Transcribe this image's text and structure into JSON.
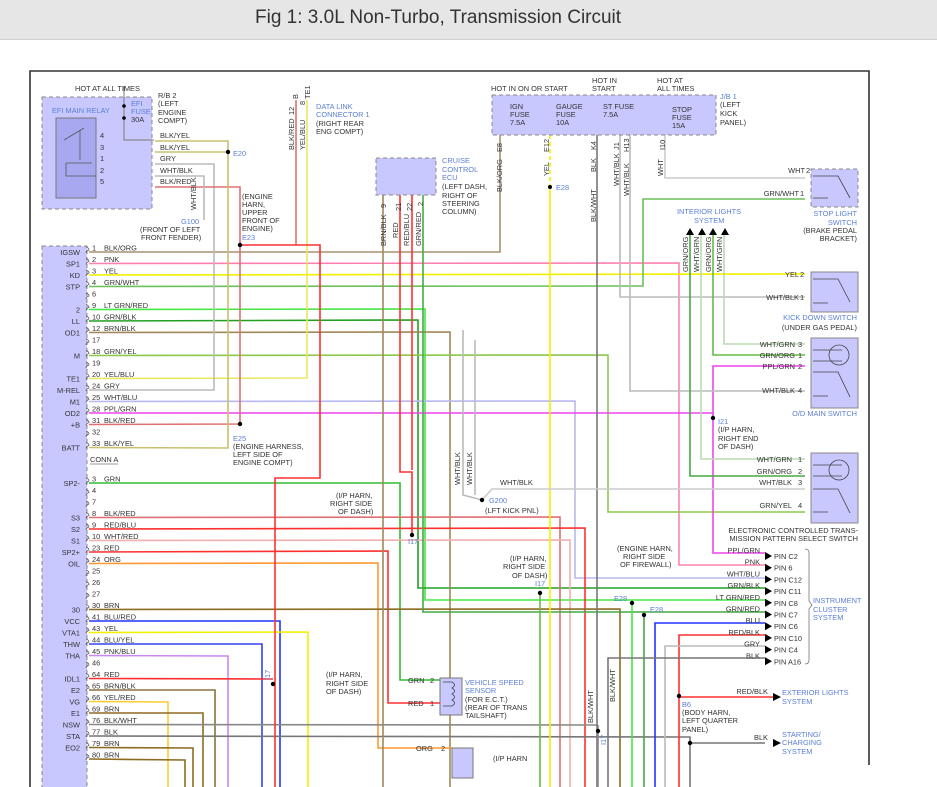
{
  "title": "Fig 1: 3.0L Non-Turbo, Transmission Circuit",
  "colors": {
    "component_fill": "#c8c8ff",
    "label_blue": "#5b7fd6",
    "frame": "#333333"
  },
  "efi_relay": {
    "hot": "HOT AT ALL TIMES",
    "name": "EFI MAIN RELAY",
    "fuse": [
      "EFI",
      "FUSE",
      "30A"
    ],
    "location": [
      "R/B 2",
      "(LEFT",
      "ENGINE",
      "COMPT)"
    ],
    "pins": [
      "4",
      "3",
      "1",
      "2",
      "5"
    ],
    "wires": [
      "BLK/YEL",
      "BLK/YEL",
      "GRY",
      "WHT/BLK",
      "BLK/RED"
    ],
    "splice_e20": "E20",
    "ground_wire": "WHT/BLK",
    "ground": "G100",
    "ground_loc": [
      "(FRONT OF LEFT",
      "FRONT FENDER)"
    ],
    "splice_e23_loc": [
      "(ENGINE",
      "HARN,",
      "UPPER",
      "FRONT OF",
      "ENGINE)"
    ],
    "splice_e23": "E23"
  },
  "data_link": {
    "pins": [
      "12",
      "8"
    ],
    "terms": [
      "B",
      "TE1"
    ],
    "wires": [
      "BLK/RED",
      "YEL/BLU"
    ],
    "name": "DATA LINK",
    "name2": "CONNECTOR 1",
    "loc": [
      "(RIGHT REAR",
      "ENG COMPT)"
    ]
  },
  "cruise": {
    "name": [
      "CRUISE",
      "CONTROL",
      "ECU"
    ],
    "loc": [
      "(LEFT DASH,",
      "RIGHT OF",
      "STEERING",
      "COLUMN)"
    ],
    "pins": [
      "9",
      "21",
      "22",
      "2"
    ],
    "wires": [
      "BRN/BLK",
      "RED",
      "RED/BLU",
      "GRN/RED"
    ]
  },
  "jb1": {
    "hot": [
      "HOT IN ON OR START",
      "HOT IN",
      "START",
      "HOT AT",
      "ALL TIMES"
    ],
    "fuses": [
      [
        "IGN",
        "FUSE",
        "7.5A"
      ],
      [
        "GAUGE",
        "FUSE",
        "10A"
      ],
      [
        "ST FUSE",
        "7.5A"
      ],
      [
        "STOP",
        "FUSE",
        "15A"
      ]
    ],
    "location": [
      "J/B 1",
      "(LEFT",
      "KICK",
      "PANEL)"
    ],
    "pins": [
      "E8",
      "E12",
      "K4",
      "J1",
      "H13",
      "I10"
    ],
    "wires": [
      "BLK/ORG",
      "YEL",
      "BLK",
      "WHT/BLK",
      "WHT/BLK",
      "WHT",
      "BLK/WHT"
    ],
    "splice_e28": "E28"
  },
  "ecm": {
    "conn_a_label": "CONN A",
    "conn_a": [
      {
        "pin": "1",
        "term": "IGSW",
        "wire": "BLK/ORG",
        "color": "#a89070"
      },
      {
        "pin": "2",
        "term": "SP1",
        "wire": "PNK",
        "color": "#ff80b0"
      },
      {
        "pin": "3",
        "term": "KD",
        "wire": "YEL",
        "color": "#f2f000"
      },
      {
        "pin": "4",
        "term": "STP",
        "wire": "GRN/WHT",
        "color": "#6cbf5a"
      },
      {
        "pin": "6",
        "term": "",
        "wire": "",
        "color": ""
      },
      {
        "pin": "9",
        "term": "2",
        "wire": "LT GRN/RED",
        "color": "#44e844"
      },
      {
        "pin": "10",
        "term": "LL",
        "wire": "GRN/BLK",
        "color": "#22a022"
      },
      {
        "pin": "12",
        "term": "OD1",
        "wire": "BRN/BLK",
        "color": "#a08858"
      },
      {
        "pin": "17",
        "term": "",
        "wire": "",
        "color": ""
      },
      {
        "pin": "18",
        "term": "M",
        "wire": "GRN/YEL",
        "color": "#8cc84a"
      },
      {
        "pin": "19",
        "term": "",
        "wire": "",
        "color": ""
      },
      {
        "pin": "20",
        "term": "TE1",
        "wire": "YEL/BLU",
        "color": "#e8e860"
      },
      {
        "pin": "24",
        "term": "M-REL",
        "wire": "GRY",
        "color": "#bbbbbb"
      },
      {
        "pin": "25",
        "term": "M1",
        "wire": "WHT/BLU",
        "color": "#b8b8f0"
      },
      {
        "pin": "28",
        "term": "OD2",
        "wire": "PPL/GRN",
        "color": "#ee44ee"
      },
      {
        "pin": "31",
        "term": "+B",
        "wire": "BLK/RED",
        "color": "#e07070"
      },
      {
        "pin": "32",
        "term": "",
        "wire": "",
        "color": ""
      },
      {
        "pin": "33",
        "term": "BATT",
        "wire": "BLK/YEL",
        "color": "#c8c070"
      }
    ],
    "conn_b": [
      {
        "pin": "3",
        "term": "SP2-",
        "wire": "GRN",
        "color": "#33bb33"
      },
      {
        "pin": "4",
        "term": "",
        "wire": "",
        "color": ""
      },
      {
        "pin": "7",
        "term": "",
        "wire": "",
        "color": ""
      },
      {
        "pin": "8",
        "term": "S3",
        "wire": "BLK/RED",
        "color": "#e07070"
      },
      {
        "pin": "9",
        "term": "S2",
        "wire": "RED/BLU",
        "color": "#ff3030"
      },
      {
        "pin": "10",
        "term": "S1",
        "wire": "WHT/RED",
        "color": "#f0b0b0"
      },
      {
        "pin": "23",
        "term": "SP2+",
        "wire": "RED",
        "color": "#ff3030"
      },
      {
        "pin": "24",
        "term": "OIL",
        "wire": "ORG",
        "color": "#ff9933"
      },
      {
        "pin": "25",
        "term": "",
        "wire": "",
        "color": ""
      },
      {
        "pin": "26",
        "term": "",
        "wire": "",
        "color": ""
      },
      {
        "pin": "27",
        "term": "",
        "wire": "",
        "color": ""
      },
      {
        "pin": "30",
        "term": "30",
        "wire": "BRN",
        "color": "#8b6c20"
      },
      {
        "pin": "41",
        "term": "VCC",
        "wire": "BLU/RED",
        "color": "#2233ff"
      },
      {
        "pin": "43",
        "term": "VTA1",
        "wire": "YEL",
        "color": "#f2f000"
      },
      {
        "pin": "44",
        "term": "THW",
        "wire": "BLU/YEL",
        "color": "#3344ee"
      },
      {
        "pin": "45",
        "term": "THA",
        "wire": "PNK/BLU",
        "color": "#cc88ee"
      },
      {
        "pin": "46",
        "term": "",
        "wire": "",
        "color": ""
      },
      {
        "pin": "64",
        "term": "IDL1",
        "wire": "RED",
        "color": "#ff3030"
      },
      {
        "pin": "65",
        "term": "E2",
        "wire": "BRN/BLK",
        "color": "#8b7040"
      },
      {
        "pin": "66",
        "term": "VG",
        "wire": "YEL/RED",
        "color": "#ffcc33"
      },
      {
        "pin": "69",
        "term": "E1",
        "wire": "BRN",
        "color": "#8b6c20"
      },
      {
        "pin": "76",
        "term": "NSW",
        "wire": "BLK/WHT",
        "color": "#888888"
      },
      {
        "pin": "77",
        "term": "STA",
        "wire": "BLK",
        "color": "#777777"
      },
      {
        "pin": "79",
        "term": "EO2",
        "wire": "BRN",
        "color": "#8b6c20"
      },
      {
        "pin": "80",
        "term": "",
        "wire": "BRN",
        "color": "#8b6c20"
      }
    ]
  },
  "splices": {
    "e25": "E25",
    "e25_loc": [
      "(ENGINE HARNESS,",
      "LEFT SIDE OF",
      "ENGINE COMPT)"
    ],
    "i17": "I17",
    "i17_loc": [
      "(I/P HARN,",
      "RIGHT SIDE",
      "OF DASH)"
    ],
    "g200": "G200",
    "g200_loc": "(LFT KICK PNL)",
    "g200_wires": [
      "WHT/BLK",
      "WHT/BLK",
      "WHT/BLK"
    ],
    "i21": "I21",
    "i21_loc": [
      "(I/P HARN,",
      "RIGHT END",
      "OF DASH)"
    ],
    "e28_loc": [
      "(ENGINE HARN,",
      "RIGHT SIDE",
      "OF FIREWALL)"
    ],
    "b6": "B6",
    "b6_loc": [
      "(BODY HARN,",
      "LEFT QUARTER",
      "PANEL)"
    ],
    "blkwht": "BLK/WHT",
    "blkwht2": "BLK/WHT"
  },
  "interior_lights": {
    "name": [
      "INTERIOR LIGHTS",
      "SYSTEM"
    ],
    "wires": [
      "GRN/ORG",
      "WHT/GRN",
      "GRN/ORG",
      "WHT/GRN"
    ]
  },
  "stop_switch": {
    "name": [
      "STOP LIGHT",
      "SWITCH"
    ],
    "loc": [
      "(BRAKE PEDAL",
      "BRACKET)"
    ],
    "wires": [
      [
        "WHT",
        "2"
      ],
      [
        "GRN/WHT",
        "1"
      ]
    ]
  },
  "kickdown": {
    "name": "KICK DOWN SWITCH",
    "loc": "(UNDER GAS PEDAL)",
    "wires": [
      [
        "YEL",
        "2"
      ],
      [
        "WHT/BLK",
        "1"
      ]
    ]
  },
  "od_switch": {
    "name": "O/D MAIN SWITCH",
    "wires": [
      [
        "WHT/GRN",
        "3"
      ],
      [
        "GRN/ORG",
        "1"
      ],
      [
        "PPL/GRN",
        "2"
      ],
      [
        "WHT/BLK",
        "4"
      ]
    ]
  },
  "ect_switch": {
    "name": [
      "ELECTRONIC CONTROLLED TRANS-",
      "MISSION PATTERN SELECT SWITCH"
    ],
    "wires": [
      [
        "WHT/GRN",
        "1"
      ],
      [
        "GRN/ORG",
        "2"
      ],
      [
        "WHT/BLK",
        "3"
      ],
      [
        "GRN/YEL",
        "4"
      ]
    ]
  },
  "cluster": {
    "name": [
      "INSTRUMENT",
      "CLUSTER",
      "SYSTEM"
    ],
    "pins": [
      {
        "wire": "PPL/GRN",
        "pin": "PIN C2"
      },
      {
        "wire": "PNK",
        "pin": "PIN 6"
      },
      {
        "wire": "WHT/BLU",
        "pin": "PIN C12"
      },
      {
        "wire": "GRN/BLK",
        "pin": "PIN C11"
      },
      {
        "wire": "LT GRN/RED",
        "pin": "PIN C8"
      },
      {
        "wire": "GRN/RED",
        "pin": "PIN C7"
      },
      {
        "wire": "BLU",
        "pin": "PIN C6"
      },
      {
        "wire": "RED/BLK",
        "pin": "PIN C10"
      },
      {
        "wire": "GRY",
        "pin": "PIN C4"
      },
      {
        "wire": "BLK",
        "pin": "PIN A16"
      }
    ]
  },
  "vss": {
    "name": [
      "VEHICLE SPEED",
      "SENSOR"
    ],
    "loc": [
      "(FOR E.C.T.)",
      "(REAR OF TRANS",
      "TAILSHAFT)"
    ],
    "wires": [
      [
        "GRN",
        "2"
      ],
      [
        "RED",
        "1"
      ]
    ]
  },
  "lower_sensor": {
    "wire": "ORG",
    "pin": "2",
    "loc": "(I/P HARN"
  },
  "exterior": {
    "wire": "RED/BLK",
    "name": [
      "EXTERIOR LIGHTS",
      "SYSTEM"
    ]
  },
  "starting": {
    "wire": "BLK",
    "name": [
      "STARTING/",
      "CHARGING",
      "SYSTEM"
    ]
  }
}
